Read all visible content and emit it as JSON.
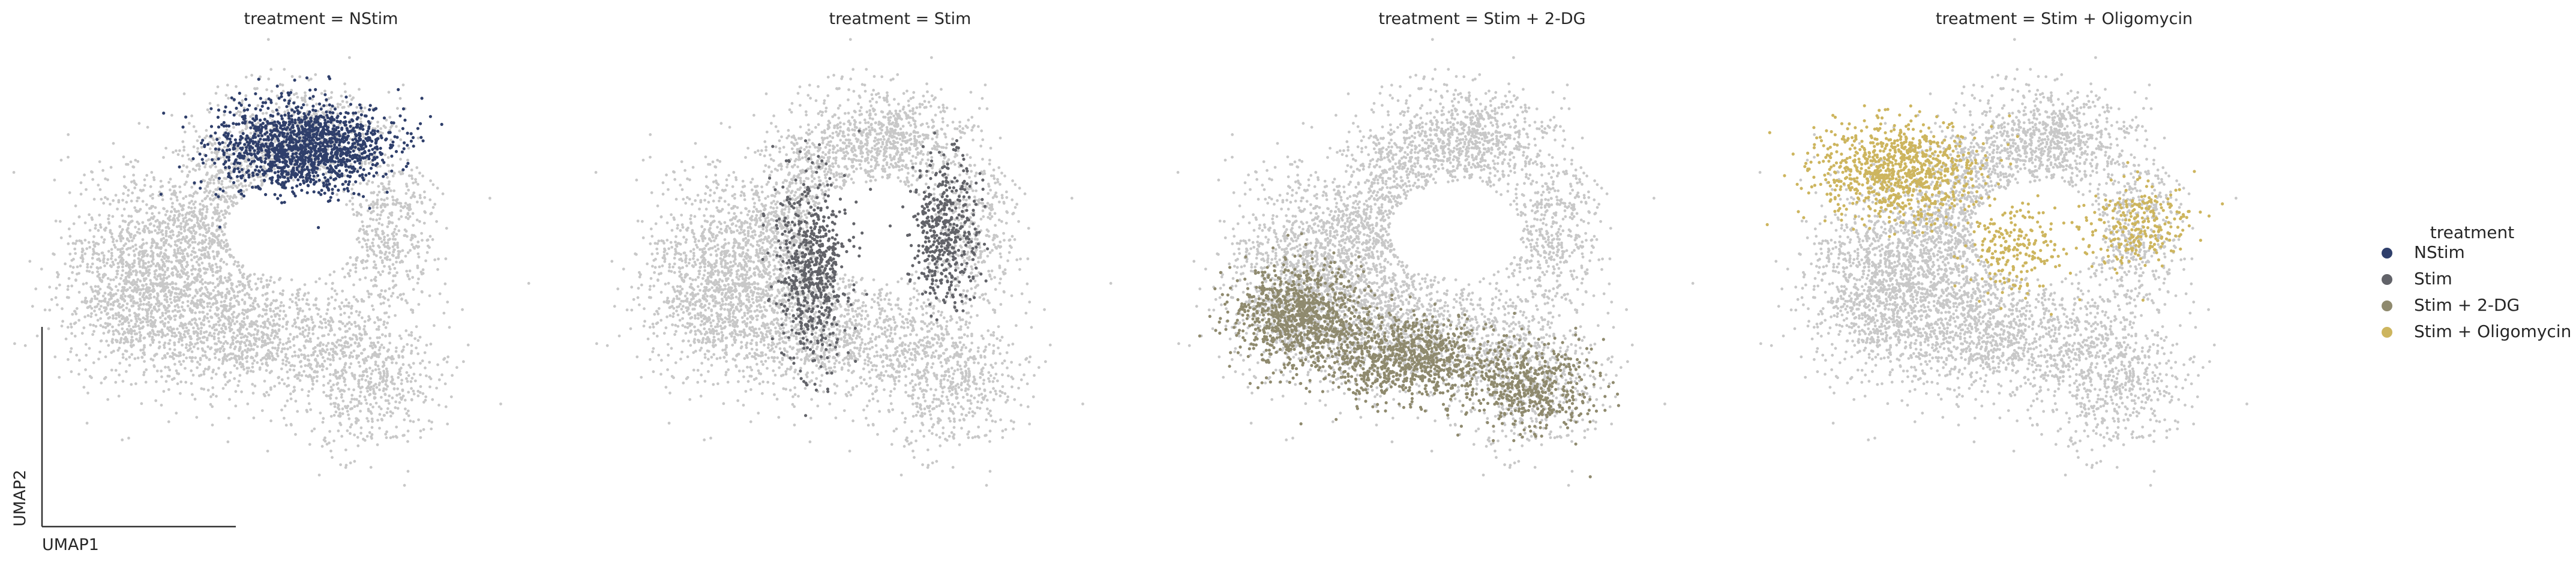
{
  "chart_data": {
    "type": "scatter",
    "embedding": "UMAP",
    "xlabel": "UMAP1",
    "ylabel": "UMAP2",
    "background_color": "#c8c8c8",
    "panels": [
      {
        "title": "treatment = NStim",
        "highlight": "NStim"
      },
      {
        "title": "treatment = Stim",
        "highlight": "Stim"
      },
      {
        "title": "treatment = Stim + 2-DG",
        "highlight": "Stim + 2-DG"
      },
      {
        "title": "treatment = Stim + Oligomycin",
        "highlight": "Stim + Oligomycin"
      }
    ],
    "legend": {
      "title": "treatment",
      "placement": "right",
      "entries": [
        {
          "label": "NStim",
          "color": "#2f3f6b"
        },
        {
          "label": "Stim",
          "color": "#626369"
        },
        {
          "label": "Stim + 2-DG",
          "color": "#8f8a6e"
        },
        {
          "label": "Stim + Oligomycin",
          "color": "#cdb55e"
        }
      ]
    }
  }
}
